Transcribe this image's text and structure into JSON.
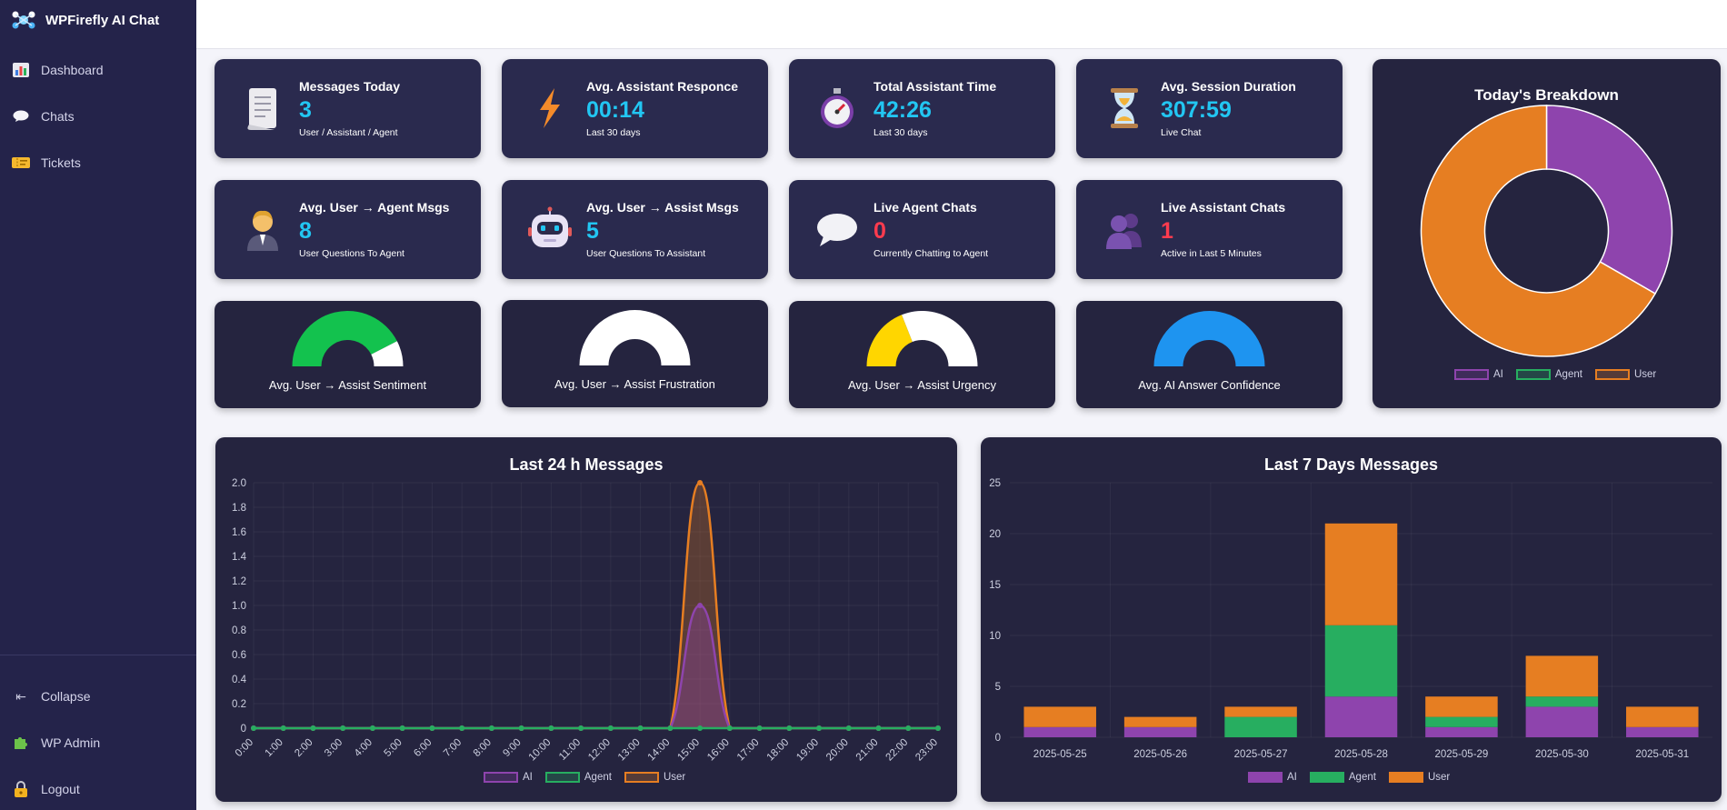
{
  "app": {
    "title": "WPFirefly AI Chat"
  },
  "sidebar": {
    "items": [
      {
        "label": "Dashboard",
        "icon": "bar-chart-icon"
      },
      {
        "label": "Chats",
        "icon": "speech-bubble-icon"
      },
      {
        "label": "Tickets",
        "icon": "ticket-icon"
      }
    ],
    "bottom": [
      {
        "label": "Collapse",
        "icon": "collapse-arrow-icon"
      },
      {
        "label": "WP Admin",
        "icon": "puzzle-icon"
      },
      {
        "label": "Logout",
        "icon": "lock-icon"
      }
    ]
  },
  "stats": [
    {
      "title": "Messages Today",
      "value": "3",
      "sub": "User / Assistant / Agent",
      "icon": "receipt-icon"
    },
    {
      "title": "Avg. Assistant Responce",
      "value": "00:14",
      "sub": "Last 30 days",
      "icon": "lightning-icon"
    },
    {
      "title": "Total Assistant Time",
      "value": "42:26",
      "sub": "Last 30 days",
      "icon": "stopwatch-icon"
    },
    {
      "title": "Avg. Session Duration",
      "value": "307:59",
      "sub": "Live Chat",
      "icon": "hourglass-icon"
    },
    {
      "title": "Avg. User → Agent Msgs",
      "value": "8",
      "sub": "User Questions To Agent",
      "icon": "agent-person-icon"
    },
    {
      "title": "Avg. User → Assist Msgs",
      "value": "5",
      "sub": "User Questions To Assistant",
      "icon": "robot-icon"
    },
    {
      "title": "Live Agent Chats",
      "value": "0",
      "sub": "Currently Chatting to Agent",
      "icon": "chat-bubble-icon"
    },
    {
      "title": "Live Assistant Chats",
      "value": "1",
      "sub": "Active in Last 5 Minutes",
      "icon": "users-icon"
    }
  ],
  "gauges": [
    {
      "label": "Avg. User → Assist Sentiment",
      "fraction": 0.85,
      "color": "#13c24e"
    },
    {
      "label": "Avg. User → Assist Frustration",
      "fraction": 0.0,
      "color": "#ffffff"
    },
    {
      "label": "Avg. User → Assist Urgency",
      "fraction": 0.38,
      "color": "#ffd600"
    },
    {
      "label": "Avg. AI Answer Confidence",
      "fraction": 1.0,
      "color": "#1e94f0"
    }
  ],
  "colors": {
    "ai": "#8e44ad",
    "agent": "#27ae60",
    "user": "#e67e22",
    "accent": "#22c6f2",
    "danger": "#ff3b4e"
  },
  "chart_data": [
    {
      "type": "pie",
      "title": "Today's Breakdown",
      "categories": [
        "AI",
        "Agent",
        "User"
      ],
      "values": [
        1,
        0,
        2
      ],
      "legend": "bottom"
    },
    {
      "type": "line",
      "title": "Last 24 h Messages",
      "x": [
        "0:00",
        "1:00",
        "2:00",
        "3:00",
        "4:00",
        "5:00",
        "6:00",
        "7:00",
        "8:00",
        "9:00",
        "10:00",
        "11:00",
        "12:00",
        "13:00",
        "14:00",
        "15:00",
        "16:00",
        "17:00",
        "18:00",
        "19:00",
        "20:00",
        "21:00",
        "22:00",
        "23:00"
      ],
      "series": [
        {
          "name": "AI",
          "values": [
            0,
            0,
            0,
            0,
            0,
            0,
            0,
            0,
            0,
            0,
            0,
            0,
            0,
            0,
            0,
            1,
            0,
            0,
            0,
            0,
            0,
            0,
            0,
            0
          ]
        },
        {
          "name": "Agent",
          "values": [
            0,
            0,
            0,
            0,
            0,
            0,
            0,
            0,
            0,
            0,
            0,
            0,
            0,
            0,
            0,
            0,
            0,
            0,
            0,
            0,
            0,
            0,
            0,
            0
          ]
        },
        {
          "name": "User",
          "values": [
            0,
            0,
            0,
            0,
            0,
            0,
            0,
            0,
            0,
            0,
            0,
            0,
            0,
            0,
            0,
            2,
            0,
            0,
            0,
            0,
            0,
            0,
            0,
            0
          ]
        }
      ],
      "ylim": [
        0,
        2
      ],
      "yticks": [
        "0",
        "0.2",
        "0.4",
        "0.6",
        "0.8",
        "1.0",
        "1.2",
        "1.4",
        "1.6",
        "1.8",
        "2.0"
      ],
      "grid": true,
      "legend": "bottom"
    },
    {
      "type": "bar",
      "stacked": true,
      "title": "Last 7 Days Messages",
      "categories": [
        "2025-05-25",
        "2025-05-26",
        "2025-05-27",
        "2025-05-28",
        "2025-05-29",
        "2025-05-30",
        "2025-05-31"
      ],
      "series": [
        {
          "name": "AI",
          "values": [
            1,
            1,
            0,
            4,
            1,
            3,
            1
          ]
        },
        {
          "name": "Agent",
          "values": [
            0,
            0,
            2,
            7,
            1,
            1,
            0
          ]
        },
        {
          "name": "User",
          "values": [
            2,
            1,
            1,
            10,
            2,
            4,
            2
          ]
        }
      ],
      "ylim": [
        0,
        25
      ],
      "yticks": [
        "0",
        "5",
        "10",
        "15",
        "20",
        "25"
      ],
      "grid": true,
      "legend": "bottom"
    }
  ]
}
